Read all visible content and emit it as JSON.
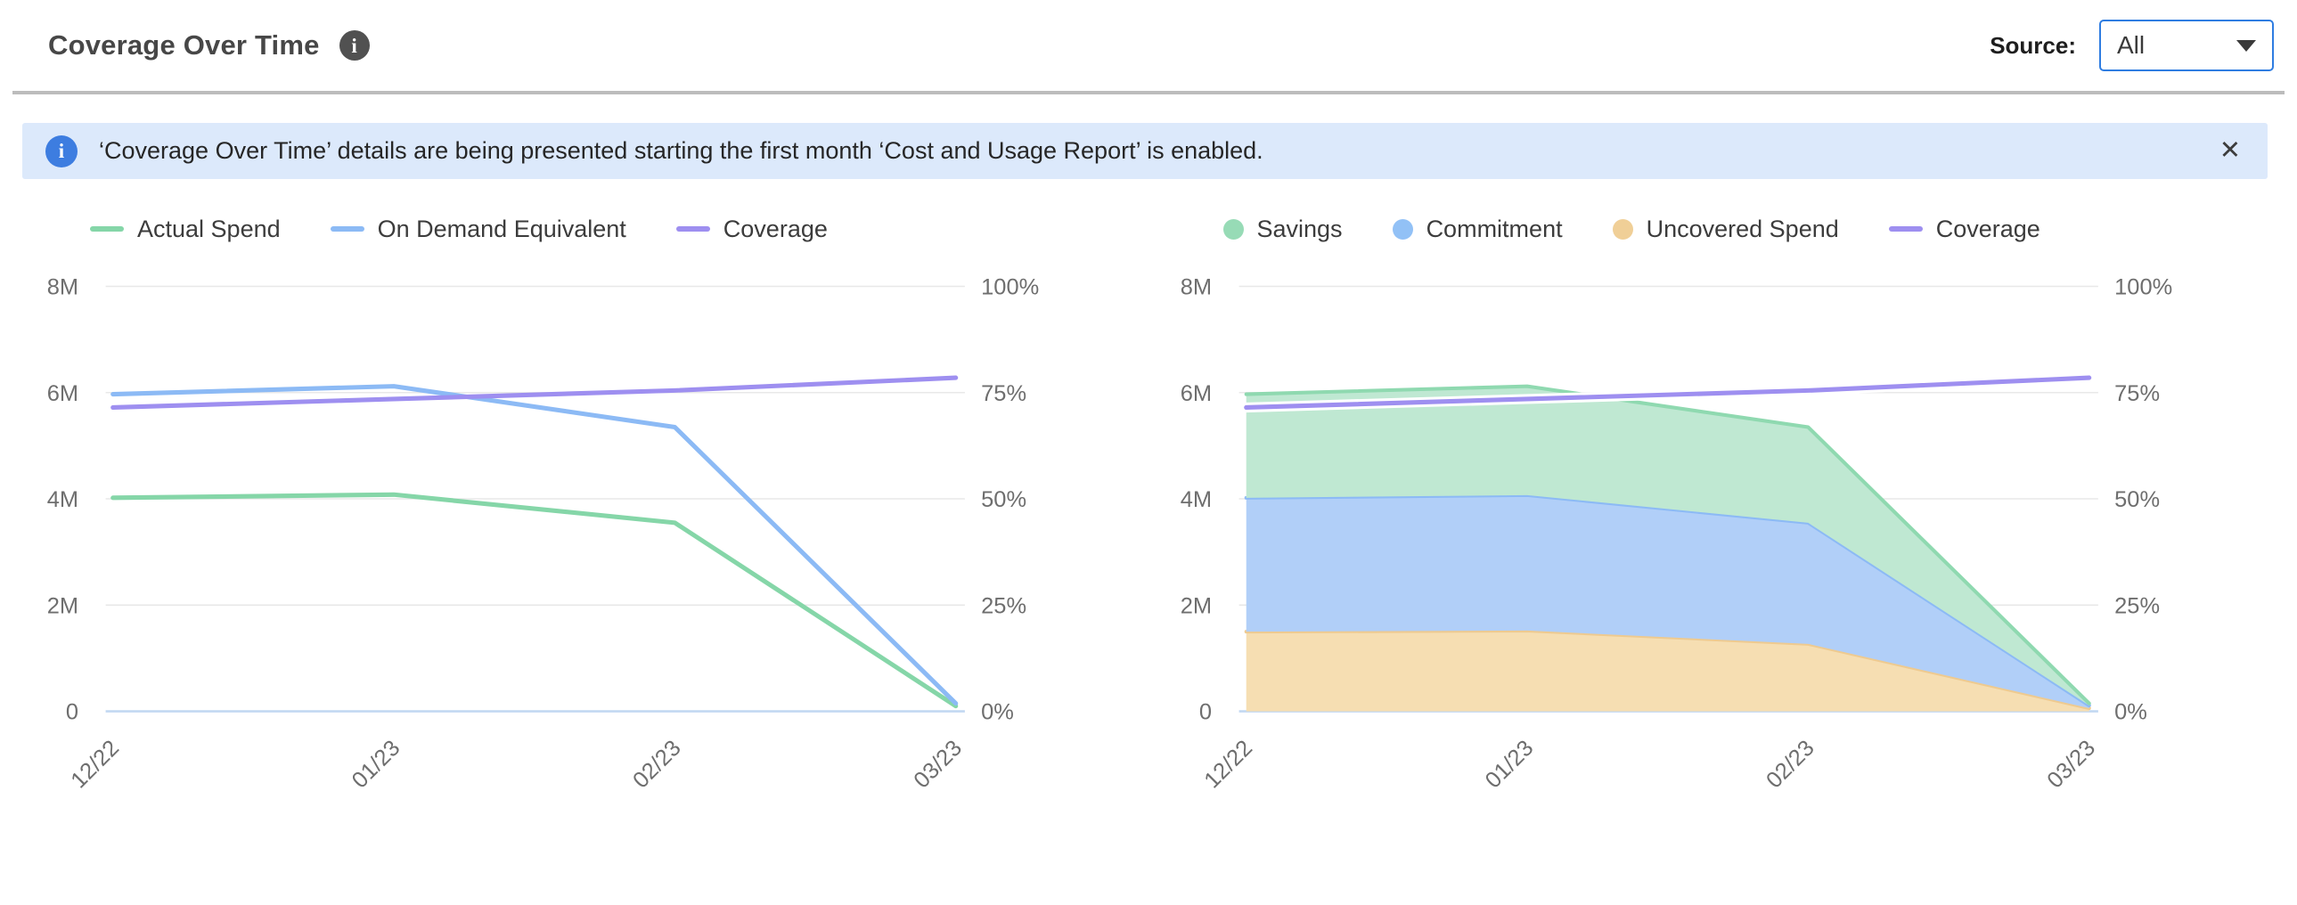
{
  "header": {
    "title": "Coverage Over Time",
    "source_label": "Source:",
    "source_value": "All"
  },
  "banner": {
    "text": "‘Coverage Over Time’ details are being presented starting the first month ‘Cost and Usage Report’ is enabled.",
    "close_icon": "✕"
  },
  "colors": {
    "banner_bg": "#dce9fb",
    "banner_icon_blue": "#3d7de0",
    "header_icon_gray": "#515151",
    "select_border_blue": "#2f7de1",
    "grid_line": "#e8e8e8",
    "zero_axis_line": "#c2d8f2",
    "actual_spend_green": "#85d6a8",
    "on_demand_blue": "#8cbaf5",
    "coverage_purple": "#9e8ff0",
    "uncovered_tan": "#eeca90"
  },
  "chart_data": [
    {
      "name": "coverage-line-chart",
      "type": "line",
      "grid": true,
      "legend_position": "top-left",
      "categories": [
        "12/22",
        "01/23",
        "02/23",
        "03/23"
      ],
      "y_left": {
        "label_ticks": [
          "8M",
          "6M",
          "4M",
          "2M",
          "0"
        ],
        "min": 0,
        "max": 8000000
      },
      "y_right": {
        "label_ticks": [
          "100%",
          "75%",
          "50%",
          "25%",
          "0%"
        ],
        "min": 0,
        "max": 100
      },
      "series": [
        {
          "name": "Actual Spend",
          "type": "line",
          "axis": "left",
          "color": "#85d6a8",
          "values": [
            4020000,
            4080000,
            3550000,
            100000
          ]
        },
        {
          "name": "On Demand Equivalent",
          "type": "line",
          "axis": "left",
          "color": "#8cbaf5",
          "values": [
            5970000,
            6120000,
            5350000,
            150000
          ]
        },
        {
          "name": "Coverage",
          "type": "line",
          "axis": "right",
          "unit": "%",
          "color": "#9e8ff0",
          "white_casing": false,
          "values": [
            71.5,
            73.5,
            75.5,
            78.5
          ]
        }
      ]
    },
    {
      "name": "coverage-stacked-area-chart",
      "type": "area",
      "stacked": true,
      "grid": true,
      "legend_position": "top-left",
      "categories": [
        "12/22",
        "01/23",
        "02/23",
        "03/23"
      ],
      "y_left": {
        "label_ticks": [
          "8M",
          "6M",
          "4M",
          "2M",
          "0"
        ],
        "min": 0,
        "max": 8000000
      },
      "y_right": {
        "label_ticks": [
          "100%",
          "75%",
          "50%",
          "25%",
          "0%"
        ],
        "min": 0,
        "max": 100
      },
      "series": [
        {
          "name": "Savings",
          "type": "area",
          "stack_level": 3,
          "color": "#8fd9b0",
          "fill": "#bfe8d2",
          "legend_color": "#97dbb6",
          "values": [
            1950000,
            2050000,
            1800000,
            40000
          ]
        },
        {
          "name": "Commitment",
          "type": "area",
          "stack_level": 2,
          "color": "#8cbaf5",
          "fill": "#b1cff8",
          "legend_color": "#92c1f6",
          "values": [
            2520000,
            2550000,
            2280000,
            50000
          ]
        },
        {
          "name": "Uncovered Spend",
          "type": "area",
          "stack_level": 1,
          "color": "#eeca90",
          "fill": "#f6deb2",
          "legend_color": "#f0cf97",
          "values": [
            1500000,
            1520000,
            1270000,
            60000
          ]
        },
        {
          "name": "Coverage",
          "type": "line",
          "axis": "right",
          "unit": "%",
          "color": "#9e8ff0",
          "white_casing": true,
          "values": [
            71.5,
            73.5,
            75.5,
            78.5
          ]
        }
      ]
    }
  ]
}
